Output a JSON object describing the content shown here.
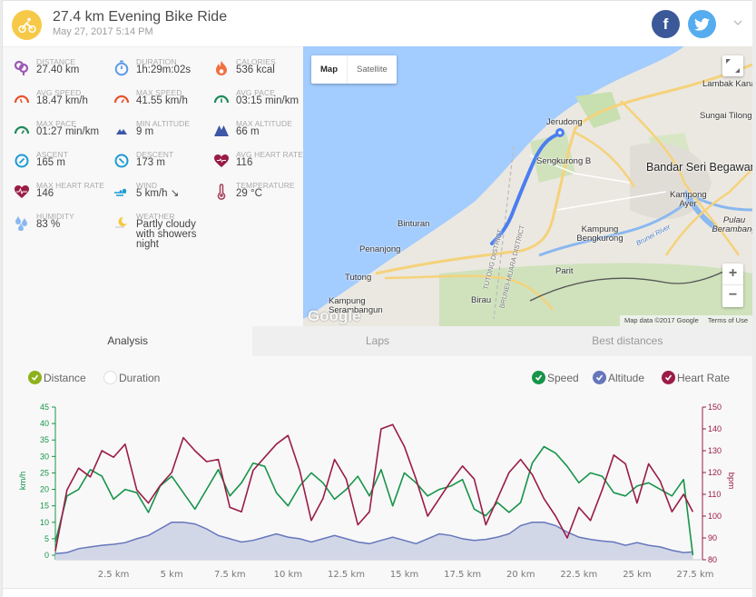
{
  "header": {
    "title": "27.4 km Evening Bike Ride",
    "subtitle": "May 27, 2017 5:14 PM",
    "sport_icon": "bicycle-icon",
    "share": {
      "facebook": "f",
      "twitter": "twitter-bird"
    },
    "expand_icon": "chevron-down-icon"
  },
  "colors": {
    "accent_yellow": "#f7c948",
    "speed": "#17944a",
    "altitude": "#6677bb",
    "heart_rate": "#9a1c45",
    "distance_check": "#8db11b",
    "facebook": "#3b5998",
    "twitter": "#55acee"
  },
  "stats": [
    {
      "label": "DISTANCE",
      "value": "27.40 km",
      "icon": "distance-pin-icon"
    },
    {
      "label": "DURATION",
      "value": "1h:29m:02s",
      "icon": "stopwatch-icon"
    },
    {
      "label": "CALORIES",
      "value": "536 kcal",
      "icon": "flame-icon"
    },
    {
      "label": "AVG SPEED",
      "value": "18.47 km/h",
      "icon": "speedometer-icon"
    },
    {
      "label": "MAX SPEED",
      "value": "41.55 km/h",
      "icon": "speedometer-max-icon"
    },
    {
      "label": "AVG PACE",
      "value": "03:15 min/km",
      "icon": "pace-gauge-icon"
    },
    {
      "label": "MAX PACE",
      "value": "01:27 min/km",
      "icon": "pace-gauge-max-icon"
    },
    {
      "label": "MIN ALTITUDE",
      "value": "9 m",
      "icon": "mountain-small-icon"
    },
    {
      "label": "MAX ALTITUDE",
      "value": "66 m",
      "icon": "mountain-large-icon"
    },
    {
      "label": "ASCENT",
      "value": "165 m",
      "icon": "ascent-compass-icon"
    },
    {
      "label": "DESCENT",
      "value": "173 m",
      "icon": "descent-compass-icon"
    },
    {
      "label": "AVG HEART RATE",
      "value": "116",
      "icon": "heart-avg-icon"
    },
    {
      "label": "MAX HEART RATE",
      "value": "146",
      "icon": "heart-max-icon"
    },
    {
      "label": "WIND",
      "value": "5 km/h ↘",
      "icon": "wind-icon"
    },
    {
      "label": "TEMPERATURE",
      "value": "29 °C",
      "icon": "thermometer-icon"
    },
    {
      "label": "HUMIDITY",
      "value": "83 %",
      "icon": "water-drops-icon"
    },
    {
      "label": "WEATHER",
      "value": "Partly cloudy with showers night",
      "icon": "weather-moon-cloud-icon"
    }
  ],
  "map": {
    "type_buttons": [
      "Map",
      "Satellite"
    ],
    "active_type": "Map",
    "zoom_in": "+",
    "zoom_out": "−",
    "attribution": "Map data ©2017 Google",
    "terms": "Terms of Use",
    "logo": "Google",
    "labels": {
      "lambak": "Lambak Kanan",
      "sungai": "Sungai Tilong",
      "jerudong": "Jerudong",
      "sengkurong": "Sengkurong B",
      "bandar": "Bandar Seri Begawan",
      "kampong_ayer": "Kampong Ayer",
      "pulau": "Pulau Berambang",
      "binturan": "Binturan",
      "penanjong": "Penanjong",
      "tutong": "Tutong",
      "kampung_ser": "Kampung Serambangun",
      "bengkurong": "Kampung Bengkurong",
      "parit": "Parit",
      "birau": "Birau",
      "tutong_district": "TUTONG DISTRICT",
      "brunei_muara": "BRUNEI-MUARA DISTRICT",
      "brunei_river": "Brunei River"
    }
  },
  "tabs": [
    {
      "label": "Analysis",
      "active": true
    },
    {
      "label": "Laps",
      "active": false
    },
    {
      "label": "Best distances",
      "active": false
    }
  ],
  "analysis": {
    "x_mode": [
      {
        "label": "Distance",
        "checked": true
      },
      {
        "label": "Duration",
        "checked": false
      }
    ],
    "series_toggles": [
      {
        "label": "Speed",
        "checked": true
      },
      {
        "label": "Altitude",
        "checked": true
      },
      {
        "label": "Heart Rate",
        "checked": true
      }
    ]
  },
  "chart_data": {
    "type": "line",
    "title": "",
    "xlabel": "Distance (km)",
    "x_ticks": [
      "2.5 km",
      "5 km",
      "7.5 km",
      "10 km",
      "12.5 km",
      "15 km",
      "17.5 km",
      "20 km",
      "22.5 km",
      "25 km",
      "27.5 km"
    ],
    "xlim": [
      0,
      27.4
    ],
    "y_left": {
      "label": "km/h",
      "ticks": [
        0,
        5,
        10,
        15,
        20,
        25,
        30,
        35,
        40,
        45
      ],
      "range": [
        0,
        45
      ]
    },
    "y_right": {
      "label": "bpm",
      "ticks": [
        80,
        90,
        100,
        110,
        120,
        130,
        140,
        150
      ],
      "range": [
        80,
        150
      ]
    },
    "grid": false,
    "legend_position": "top-right",
    "x": [
      0,
      0.5,
      1,
      1.5,
      2,
      2.5,
      3,
      3.5,
      4,
      4.5,
      5,
      5.5,
      6,
      6.5,
      7,
      7.5,
      8,
      8.5,
      9,
      9.5,
      10,
      10.5,
      11,
      11.5,
      12,
      12.5,
      13,
      13.5,
      14,
      14.5,
      15,
      15.5,
      16,
      16.5,
      17,
      17.5,
      18,
      18.5,
      19,
      19.5,
      20,
      20.5,
      21,
      21.5,
      22,
      22.5,
      23,
      23.5,
      24,
      24.5,
      25,
      25.5,
      26,
      26.5,
      27,
      27.4
    ],
    "series": [
      {
        "name": "Speed",
        "axis": "left",
        "unit": "km/h",
        "values": [
          4,
          18,
          20,
          26,
          24,
          17,
          20,
          19,
          13,
          21,
          24,
          19,
          14,
          20,
          26,
          18,
          22,
          28,
          27,
          19,
          15,
          21,
          25,
          22,
          17,
          20,
          24,
          18,
          26,
          15,
          25,
          22,
          18,
          20,
          21,
          23,
          14,
          12,
          16,
          13,
          16,
          28,
          33,
          31,
          27,
          22,
          25,
          24,
          19,
          18,
          21,
          22,
          20,
          18,
          23,
          0
        ]
      },
      {
        "name": "Heart Rate",
        "axis": "right",
        "unit": "bpm",
        "values": [
          84,
          112,
          122,
          118,
          130,
          127,
          133,
          112,
          106,
          114,
          120,
          136,
          130,
          125,
          126,
          104,
          102,
          121,
          127,
          133,
          137,
          121,
          98,
          108,
          126,
          117,
          96,
          102,
          140,
          142,
          132,
          117,
          100,
          108,
          116,
          123,
          117,
          96,
          108,
          120,
          126,
          119,
          108,
          100,
          90,
          104,
          98,
          112,
          128,
          124,
          106,
          124,
          116,
          102,
          110,
          102
        ]
      },
      {
        "name": "Altitude",
        "axis": "left",
        "unit": "scaled",
        "values": [
          0.5,
          0.8,
          2,
          2.5,
          3,
          3.3,
          3.8,
          5,
          6,
          8,
          10,
          10,
          9.5,
          8,
          6,
          5,
          4,
          4.5,
          5.5,
          6.5,
          5.5,
          5,
          4,
          5,
          6,
          5,
          4,
          3.5,
          4.5,
          5.5,
          4.5,
          3.5,
          5,
          6.5,
          6,
          5,
          4.5,
          4.8,
          5.5,
          6.5,
          9,
          10,
          10,
          9,
          7,
          5.5,
          4.8,
          4.3,
          4,
          3,
          3.8,
          3,
          2.5,
          1.5,
          0.8,
          1
        ]
      }
    ]
  }
}
